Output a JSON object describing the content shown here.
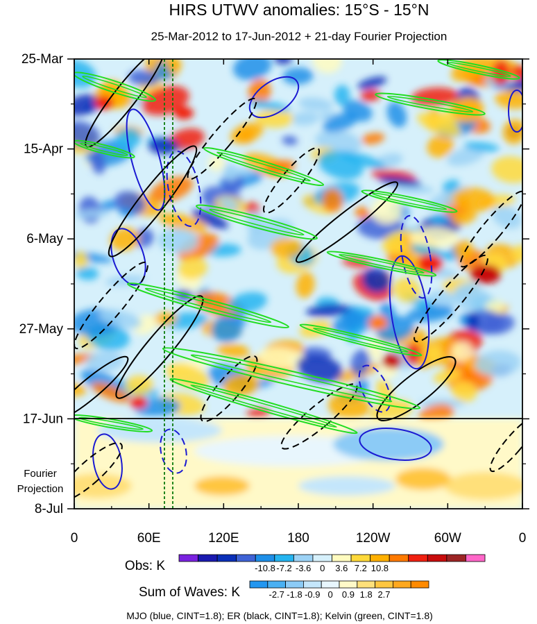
{
  "chart_data": {
    "type": "heatmap",
    "title": "HIRS UTWV anomalies: 15°S - 15°N",
    "subtitle": "25-Mar-2012 to 17-Jun-2012 + 21-day Fourier Projection",
    "x_ticks": [
      "0",
      "60E",
      "120E",
      "180",
      "120W",
      "60W",
      "0"
    ],
    "y_ticks": [
      "25-Mar",
      "15-Apr",
      "6-May",
      "27-May",
      "17-Jun",
      "8-Jul"
    ],
    "projection_label": [
      "Fourier",
      "Projection"
    ],
    "xlim": [
      0,
      360
    ],
    "obs_colorbar": {
      "label": "Obs: K",
      "tick_labels": [
        "-10.8",
        "-7.2",
        "-3.6",
        "0",
        "3.6",
        "7.2",
        "10.8"
      ],
      "colors": [
        "#7a22e0",
        "#1a1ab0",
        "#0a2fb8",
        "#3f63d6",
        "#1e8fe8",
        "#25b4f0",
        "#9cd2f5",
        "#d6f0fb",
        "#fffbbf",
        "#ffd93a",
        "#ffb000",
        "#ff7a00",
        "#f02010",
        "#c80c0c",
        "#9c2424",
        "#ff66c8"
      ]
    },
    "waves_colorbar": {
      "label": "Sum of Waves: K",
      "tick_labels": [
        "-2.7",
        "-1.8",
        "-0.9",
        "0",
        "0.9",
        "1.8",
        "2.7"
      ],
      "colors": [
        "#2296f0",
        "#4ab0f2",
        "#8ccbf6",
        "#c4e6fb",
        "#e8f6fd",
        "#fff9c8",
        "#ffe07a",
        "#ffc640",
        "#ffa81e",
        "#ff8a00"
      ]
    },
    "footer": "MJO (blue, CINT=1.8); ER (black, CINT=1.8); Kelvin (green, CINT=1.8)",
    "contour_colors": {
      "mjo": "#1a1ad2",
      "er": "#000000",
      "kelvin": "#22dd22"
    }
  }
}
